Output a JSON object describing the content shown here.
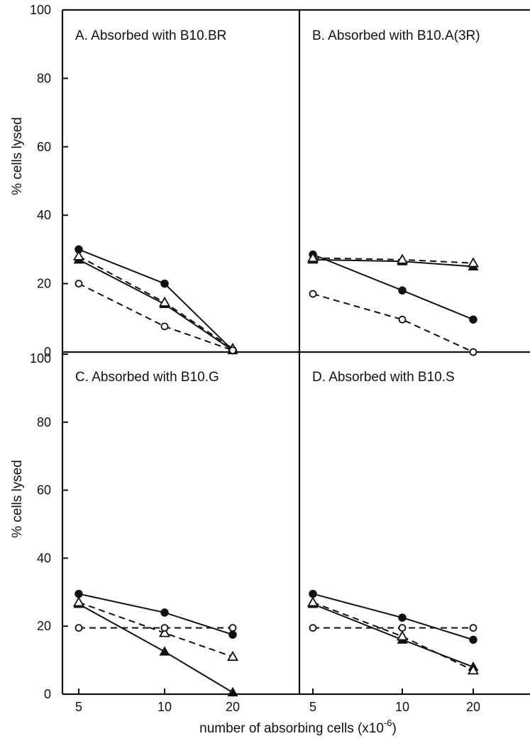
{
  "figure": {
    "ylabel": "% cells lysed",
    "xlabel": "number of absorbing cells (x10",
    "xlabel_exponent": "-6",
    "xlabel_close": ")",
    "ink_color": "#111111"
  },
  "chart_data": [
    {
      "type": "line",
      "title": "A.  Absorbed with B10.BR",
      "categories": [
        "5",
        "10",
        "20"
      ],
      "ylim": [
        0,
        100
      ],
      "yticks": [
        0,
        20,
        40,
        60,
        80,
        100
      ],
      "grid": false,
      "series": [
        {
          "marker": "filled-circle",
          "line": "solid",
          "values": [
            30,
            20,
            0.5
          ]
        },
        {
          "marker": "filled-triangle",
          "line": "solid",
          "values": [
            27,
            14,
            0.5
          ]
        },
        {
          "marker": "open-triangle",
          "line": "dashed",
          "values": [
            28,
            14.5,
            1
          ]
        },
        {
          "marker": "open-circle",
          "line": "dashed",
          "values": [
            20,
            7.5,
            0.5
          ]
        }
      ]
    },
    {
      "type": "line",
      "title": "B.  Absorbed with B10.A(3R)",
      "categories": [
        "5",
        "10",
        "20"
      ],
      "ylim": [
        0,
        100
      ],
      "yticks": [
        0,
        20,
        40,
        60,
        80,
        100
      ],
      "grid": false,
      "series": [
        {
          "marker": "filled-circle",
          "line": "solid",
          "values": [
            28.5,
            18,
            9.5
          ]
        },
        {
          "marker": "filled-triangle",
          "line": "solid",
          "values": [
            27,
            26.5,
            25
          ]
        },
        {
          "marker": "open-triangle",
          "line": "dashed",
          "values": [
            27.5,
            27,
            26
          ]
        },
        {
          "marker": "open-circle",
          "line": "dashed",
          "values": [
            17,
            9.5,
            0
          ]
        }
      ]
    },
    {
      "type": "line",
      "title": "C.  Absorbed with B10.G",
      "categories": [
        "5",
        "10",
        "20"
      ],
      "ylim": [
        0,
        100
      ],
      "yticks": [
        0,
        20,
        40,
        60,
        80,
        100
      ],
      "grid": false,
      "series": [
        {
          "marker": "filled-circle",
          "line": "solid",
          "values": [
            29.5,
            24,
            17.5
          ]
        },
        {
          "marker": "filled-triangle",
          "line": "solid",
          "values": [
            26.5,
            12.5,
            0.5
          ]
        },
        {
          "marker": "open-triangle",
          "line": "dashed",
          "values": [
            27,
            18,
            11
          ]
        },
        {
          "marker": "open-circle",
          "line": "dashed",
          "values": [
            19.5,
            19.5,
            19.5
          ]
        }
      ]
    },
    {
      "type": "line",
      "title": "D.  Absorbed with B10.S",
      "categories": [
        "5",
        "10",
        "20"
      ],
      "ylim": [
        0,
        100
      ],
      "yticks": [
        0,
        20,
        40,
        60,
        80,
        100
      ],
      "grid": false,
      "series": [
        {
          "marker": "filled-circle",
          "line": "solid",
          "values": [
            29.5,
            22.5,
            16
          ]
        },
        {
          "marker": "filled-triangle",
          "line": "solid",
          "values": [
            26.5,
            16,
            8
          ]
        },
        {
          "marker": "open-triangle",
          "line": "dashed",
          "values": [
            27,
            17,
            7
          ]
        },
        {
          "marker": "open-circle",
          "line": "dashed",
          "values": [
            19.5,
            19.5,
            19.5
          ]
        }
      ]
    }
  ]
}
